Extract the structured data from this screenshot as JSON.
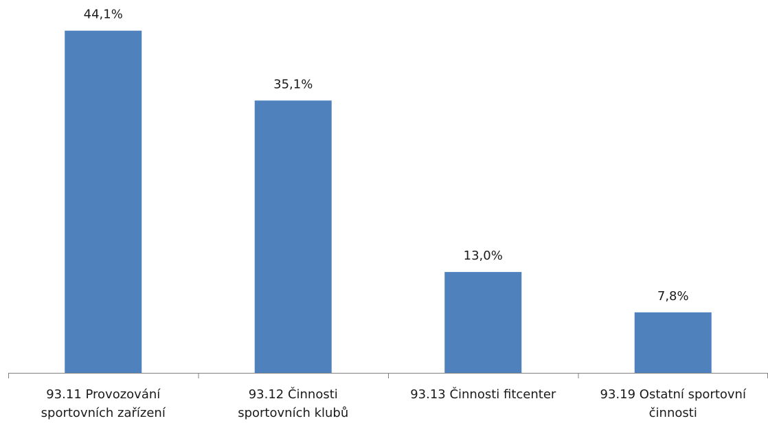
{
  "chart_data": {
    "type": "bar",
    "categories": [
      [
        "93.11 Provozování",
        "sportovních zařízení"
      ],
      [
        "93.12 Činnosti",
        "sportovních klubů"
      ],
      [
        "93.13 Činnosti fitcenter"
      ],
      [
        "93.19 Ostatní sportovní",
        "činnosti"
      ]
    ],
    "values": [
      44.1,
      35.1,
      13.0,
      7.8
    ],
    "value_labels": [
      "44,1%",
      "35,1%",
      "13,0%",
      "7,8%"
    ],
    "title": "",
    "xlabel": "",
    "ylabel": "",
    "ylim": [
      0,
      50
    ],
    "grid": false,
    "legend": "none",
    "bar_color": "#4f81bd",
    "axis_color": "#7f7f7f"
  }
}
